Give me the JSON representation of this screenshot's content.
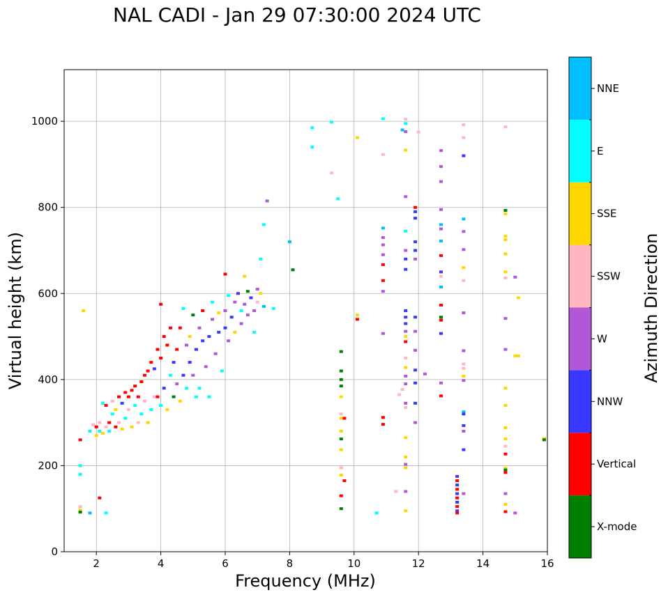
{
  "chart_data": {
    "type": "scatter",
    "title": "NAL CADI - Jan 29 07:30:00 2024 UTC",
    "xlabel": "Frequency (MHz)",
    "ylabel": "Virtual height (km)",
    "xlim": [
      1,
      16
    ],
    "ylim": [
      0,
      1120
    ],
    "xticks": [
      2,
      4,
      6,
      8,
      10,
      12,
      14,
      16
    ],
    "yticks": [
      0,
      200,
      400,
      600,
      800,
      1000
    ],
    "grid": true,
    "colorbar": {
      "label": "Azimuth Direction",
      "categories": [
        {
          "name": "X-mode",
          "color": "#008000"
        },
        {
          "name": "Vertical",
          "color": "#ff0000"
        },
        {
          "name": "NNW",
          "color": "#3838ff"
        },
        {
          "name": "W",
          "color": "#b257d6"
        },
        {
          "name": "SSW",
          "color": "#ffb6c1"
        },
        {
          "name": "SSE",
          "color": "#ffd700"
        },
        {
          "name": "E",
          "color": "#00ffff"
        },
        {
          "name": "NNE",
          "color": "#00bfff"
        }
      ]
    },
    "points": [
      [
        1.5,
        97,
        "SSE"
      ],
      [
        1.5,
        105,
        "SSW"
      ],
      [
        1.5,
        92,
        "X-mode"
      ],
      [
        1.5,
        180,
        "E"
      ],
      [
        1.5,
        200,
        "E"
      ],
      [
        1.5,
        260,
        "Vertical"
      ],
      [
        1.6,
        560,
        "SSE"
      ],
      [
        1.8,
        90,
        "NNE"
      ],
      [
        2.1,
        125,
        "Vertical"
      ],
      [
        2.3,
        90,
        "E"
      ],
      [
        1.8,
        280,
        "E"
      ],
      [
        1.9,
        295,
        "SSW"
      ],
      [
        2.0,
        270,
        "SSE"
      ],
      [
        2.0,
        290,
        "Vertical"
      ],
      [
        2.1,
        280,
        "E"
      ],
      [
        2.1,
        300,
        "SSW"
      ],
      [
        2.2,
        345,
        "E"
      ],
      [
        2.2,
        275,
        "SSE"
      ],
      [
        2.3,
        340,
        "Vertical"
      ],
      [
        2.3,
        290,
        "SSW"
      ],
      [
        2.4,
        300,
        "Vertical"
      ],
      [
        2.4,
        280,
        "E"
      ],
      [
        2.5,
        350,
        "SSW"
      ],
      [
        2.5,
        320,
        "E"
      ],
      [
        2.6,
        290,
        "Vertical"
      ],
      [
        2.6,
        330,
        "SSE"
      ],
      [
        2.7,
        360,
        "Vertical"
      ],
      [
        2.7,
        300,
        "SSW"
      ],
      [
        2.8,
        285,
        "SSE"
      ],
      [
        2.8,
        345,
        "NNW"
      ],
      [
        2.9,
        370,
        "Vertical"
      ],
      [
        2.9,
        310,
        "E"
      ],
      [
        3.0,
        360,
        "Vertical"
      ],
      [
        3.0,
        330,
        "SSW"
      ],
      [
        3.1,
        290,
        "SSE"
      ],
      [
        3.1,
        375,
        "Vertical"
      ],
      [
        3.2,
        340,
        "E"
      ],
      [
        3.2,
        385,
        "Vertical"
      ],
      [
        3.3,
        300,
        "SSW"
      ],
      [
        3.3,
        360,
        "Vertical"
      ],
      [
        3.4,
        395,
        "Vertical"
      ],
      [
        3.4,
        320,
        "E"
      ],
      [
        3.5,
        410,
        "Vertical"
      ],
      [
        3.5,
        350,
        "SSW"
      ],
      [
        3.6,
        300,
        "SSE"
      ],
      [
        3.6,
        420,
        "Vertical"
      ],
      [
        3.7,
        440,
        "Vertical"
      ],
      [
        3.7,
        330,
        "E"
      ],
      [
        3.8,
        360,
        "SSW"
      ],
      [
        3.8,
        425,
        "NNW"
      ],
      [
        3.9,
        470,
        "Vertical"
      ],
      [
        3.9,
        360,
        "Vertical"
      ],
      [
        4.0,
        450,
        "Vertical"
      ],
      [
        4.0,
        340,
        "E"
      ],
      [
        4.0,
        575,
        "Vertical"
      ],
      [
        4.1,
        500,
        "Vertical"
      ],
      [
        4.1,
        380,
        "NNW"
      ],
      [
        4.2,
        480,
        "Vertical"
      ],
      [
        4.2,
        330,
        "SSE"
      ],
      [
        4.3,
        410,
        "E"
      ],
      [
        4.3,
        520,
        "Vertical"
      ],
      [
        4.4,
        360,
        "X-mode"
      ],
      [
        4.4,
        440,
        "NNW"
      ],
      [
        4.5,
        470,
        "Vertical"
      ],
      [
        4.5,
        390,
        "W"
      ],
      [
        4.6,
        520,
        "Vertical"
      ],
      [
        4.6,
        350,
        "SSE"
      ],
      [
        4.7,
        410,
        "NNW"
      ],
      [
        4.7,
        565,
        "E"
      ],
      [
        4.8,
        480,
        "W"
      ],
      [
        4.8,
        380,
        "E"
      ],
      [
        4.9,
        500,
        "SSE"
      ],
      [
        4.9,
        440,
        "NNW"
      ],
      [
        5.0,
        550,
        "X-mode"
      ],
      [
        5.0,
        410,
        "W"
      ],
      [
        5.1,
        360,
        "E"
      ],
      [
        5.1,
        470,
        "NNW"
      ],
      [
        5.2,
        520,
        "W"
      ],
      [
        5.2,
        380,
        "E"
      ],
      [
        5.3,
        490,
        "NNW"
      ],
      [
        5.3,
        560,
        "Vertical"
      ],
      [
        5.4,
        430,
        "W"
      ],
      [
        5.5,
        500,
        "NNW"
      ],
      [
        5.5,
        360,
        "E"
      ],
      [
        5.6,
        540,
        "W"
      ],
      [
        5.6,
        580,
        "E"
      ],
      [
        5.7,
        460,
        "W"
      ],
      [
        5.8,
        510,
        "NNW"
      ],
      [
        5.8,
        555,
        "SSE"
      ],
      [
        5.9,
        420,
        "E"
      ],
      [
        6.0,
        560,
        "W"
      ],
      [
        6.0,
        645,
        "Vertical"
      ],
      [
        6.0,
        520,
        "NNW"
      ],
      [
        6.1,
        490,
        "W"
      ],
      [
        6.1,
        595,
        "E"
      ],
      [
        6.2,
        545,
        "NNW"
      ],
      [
        6.3,
        510,
        "SSE"
      ],
      [
        6.3,
        580,
        "W"
      ],
      [
        6.4,
        600,
        "NNW"
      ],
      [
        6.5,
        530,
        "W"
      ],
      [
        6.5,
        560,
        "E"
      ],
      [
        6.6,
        640,
        "SSE"
      ],
      [
        6.6,
        575,
        "W"
      ],
      [
        6.7,
        605,
        "X-mode"
      ],
      [
        6.7,
        550,
        "W"
      ],
      [
        6.8,
        590,
        "NNW"
      ],
      [
        6.9,
        560,
        "W"
      ],
      [
        6.9,
        510,
        "E"
      ],
      [
        7.0,
        610,
        "W"
      ],
      [
        7.0,
        580,
        "SSW"
      ],
      [
        7.1,
        600,
        "SSE"
      ],
      [
        7.1,
        680,
        "E"
      ],
      [
        7.2,
        570,
        "NNE"
      ],
      [
        7.2,
        760,
        "E"
      ],
      [
        7.3,
        815,
        "W"
      ],
      [
        7.5,
        565,
        "E"
      ],
      [
        8.0,
        720,
        "NNE"
      ],
      [
        8.1,
        655,
        "X-mode"
      ],
      [
        8.7,
        985,
        "E"
      ],
      [
        8.7,
        940,
        "E"
      ],
      [
        9.3,
        998,
        "E"
      ],
      [
        9.3,
        880,
        "SSW"
      ],
      [
        9.5,
        820,
        "E"
      ],
      [
        9.6,
        465,
        "X-mode"
      ],
      [
        9.6,
        420,
        "X-mode"
      ],
      [
        9.6,
        400,
        "X-mode"
      ],
      [
        9.6,
        385,
        "X-mode"
      ],
      [
        9.6,
        360,
        "SSE"
      ],
      [
        9.6,
        320,
        "SSW"
      ],
      [
        9.6,
        310,
        "SSE"
      ],
      [
        9.7,
        310,
        "Vertical"
      ],
      [
        9.6,
        280,
        "SSE"
      ],
      [
        9.6,
        262,
        "X-mode"
      ],
      [
        9.6,
        237,
        "SSE"
      ],
      [
        9.6,
        195,
        "SSW"
      ],
      [
        9.6,
        178,
        "SSE"
      ],
      [
        9.7,
        165,
        "Vertical"
      ],
      [
        9.6,
        130,
        "Vertical"
      ],
      [
        9.6,
        100,
        "X-mode"
      ],
      [
        10.1,
        962,
        "SSE"
      ],
      [
        10.1,
        550,
        "SSE"
      ],
      [
        10.1,
        540,
        "Vertical"
      ],
      [
        10.7,
        90,
        "E"
      ],
      [
        10.9,
        1006,
        "E"
      ],
      [
        10.9,
        923,
        "SSW"
      ],
      [
        10.9,
        752,
        "NNE"
      ],
      [
        10.9,
        730,
        "W"
      ],
      [
        10.9,
        713,
        "W"
      ],
      [
        10.9,
        690,
        "W"
      ],
      [
        10.9,
        667,
        "Vertical"
      ],
      [
        10.9,
        630,
        "Vertical"
      ],
      [
        10.9,
        605,
        "W"
      ],
      [
        10.9,
        507,
        "W"
      ],
      [
        10.9,
        312,
        "Vertical"
      ],
      [
        10.9,
        296,
        "Vertical"
      ],
      [
        11.3,
        140,
        "SSW"
      ],
      [
        11.4,
        365,
        "SSW"
      ],
      [
        11.5,
        377,
        "SSW"
      ],
      [
        11.5,
        980,
        "NNE"
      ],
      [
        11.6,
        1005,
        "SSW"
      ],
      [
        11.6,
        995,
        "E"
      ],
      [
        11.6,
        976,
        "W"
      ],
      [
        11.6,
        933,
        "SSE"
      ],
      [
        11.6,
        825,
        "W"
      ],
      [
        11.6,
        745,
        "E"
      ],
      [
        11.6,
        700,
        "W"
      ],
      [
        11.6,
        680,
        "NNW"
      ],
      [
        11.6,
        656,
        "NNW"
      ],
      [
        11.6,
        560,
        "NNW"
      ],
      [
        11.6,
        545,
        "NNW"
      ],
      [
        11.6,
        530,
        "NNW"
      ],
      [
        11.6,
        512,
        "W"
      ],
      [
        11.6,
        500,
        "SSE"
      ],
      [
        11.6,
        488,
        "Vertical"
      ],
      [
        11.6,
        450,
        "SSW"
      ],
      [
        11.6,
        428,
        "SSE"
      ],
      [
        11.6,
        408,
        "W"
      ],
      [
        11.6,
        390,
        "W"
      ],
      [
        11.6,
        345,
        "W"
      ],
      [
        11.6,
        335,
        "SSW"
      ],
      [
        11.6,
        265,
        "SSE"
      ],
      [
        11.6,
        220,
        "SSE"
      ],
      [
        11.6,
        203,
        "W"
      ],
      [
        11.6,
        195,
        "SSE"
      ],
      [
        11.6,
        140,
        "W"
      ],
      [
        11.6,
        95,
        "SSE"
      ],
      [
        11.9,
        800,
        "Vertical"
      ],
      [
        11.9,
        790,
        "NNW"
      ],
      [
        11.9,
        775,
        "NNW"
      ],
      [
        11.9,
        720,
        "NNW"
      ],
      [
        11.9,
        700,
        "NNW"
      ],
      [
        11.9,
        680,
        "W"
      ],
      [
        11.9,
        545,
        "NNW"
      ],
      [
        11.9,
        512,
        "W"
      ],
      [
        11.9,
        468,
        "W"
      ],
      [
        11.9,
        422,
        "NNW"
      ],
      [
        11.9,
        392,
        "NNW"
      ],
      [
        11.9,
        345,
        "NNW"
      ],
      [
        11.9,
        300,
        "W"
      ],
      [
        12.0,
        975,
        "SSW"
      ],
      [
        12.2,
        413,
        "W"
      ],
      [
        12.7,
        932,
        "W"
      ],
      [
        12.7,
        895,
        "W"
      ],
      [
        12.7,
        860,
        "W"
      ],
      [
        12.7,
        795,
        "W"
      ],
      [
        12.7,
        760,
        "NNE"
      ],
      [
        12.7,
        750,
        "W"
      ],
      [
        12.7,
        722,
        "NNE"
      ],
      [
        12.7,
        688,
        "Vertical"
      ],
      [
        12.7,
        650,
        "NNW"
      ],
      [
        12.7,
        640,
        "SSW"
      ],
      [
        12.7,
        615,
        "NNE"
      ],
      [
        12.7,
        573,
        "Vertical"
      ],
      [
        12.7,
        545,
        "X-mode"
      ],
      [
        12.7,
        538,
        "Vertical"
      ],
      [
        12.7,
        507,
        "NNW"
      ],
      [
        12.7,
        392,
        "W"
      ],
      [
        12.7,
        362,
        "Vertical"
      ],
      [
        13.2,
        175,
        "NNW"
      ],
      [
        13.2,
        165,
        "Vertical"
      ],
      [
        13.2,
        155,
        "NNW"
      ],
      [
        13.2,
        145,
        "Vertical"
      ],
      [
        13.2,
        135,
        "NNW"
      ],
      [
        13.2,
        125,
        "Vertical"
      ],
      [
        13.2,
        115,
        "NNW"
      ],
      [
        13.2,
        105,
        "Vertical"
      ],
      [
        13.2,
        95,
        "NNW"
      ],
      [
        13.2,
        90,
        "Vertical"
      ],
      [
        13.4,
        992,
        "SSW"
      ],
      [
        13.4,
        962,
        "SSW"
      ],
      [
        13.4,
        920,
        "NNW"
      ],
      [
        13.4,
        773,
        "NNE"
      ],
      [
        13.4,
        744,
        "W"
      ],
      [
        13.4,
        702,
        "W"
      ],
      [
        13.4,
        660,
        "SSE"
      ],
      [
        13.4,
        630,
        "SSW"
      ],
      [
        13.4,
        555,
        "W"
      ],
      [
        13.4,
        467,
        "W"
      ],
      [
        13.4,
        436,
        "SSW"
      ],
      [
        13.4,
        426,
        "SSW"
      ],
      [
        13.4,
        408,
        "SSE"
      ],
      [
        13.4,
        398,
        "W"
      ],
      [
        13.4,
        325,
        "NNE"
      ],
      [
        13.4,
        320,
        "NNW"
      ],
      [
        13.4,
        293,
        "NNW"
      ],
      [
        13.4,
        280,
        "W"
      ],
      [
        13.4,
        237,
        "NNW"
      ],
      [
        13.4,
        135,
        "W"
      ],
      [
        14.7,
        987,
        "SSW"
      ],
      [
        14.7,
        793,
        "X-mode"
      ],
      [
        14.7,
        785,
        "SSE"
      ],
      [
        14.7,
        733,
        "SSE"
      ],
      [
        14.7,
        725,
        "SSE"
      ],
      [
        14.7,
        692,
        "SSE"
      ],
      [
        14.7,
        650,
        "SSE"
      ],
      [
        14.7,
        636,
        "SSW"
      ],
      [
        14.7,
        542,
        "W"
      ],
      [
        14.7,
        470,
        "W"
      ],
      [
        14.7,
        380,
        "SSE"
      ],
      [
        14.7,
        340,
        "SSE"
      ],
      [
        14.7,
        288,
        "SSE"
      ],
      [
        14.7,
        262,
        "SSE"
      ],
      [
        14.7,
        245,
        "SSW"
      ],
      [
        14.7,
        227,
        "Vertical"
      ],
      [
        14.7,
        194,
        "SSE"
      ],
      [
        14.7,
        190,
        "X-mode"
      ],
      [
        14.7,
        184,
        "Vertical"
      ],
      [
        14.7,
        135,
        "W"
      ],
      [
        14.7,
        110,
        "SSE"
      ],
      [
        14.7,
        93,
        "Vertical"
      ],
      [
        15.0,
        638,
        "W"
      ],
      [
        15.1,
        590,
        "SSE"
      ],
      [
        15.0,
        455,
        "SSE"
      ],
      [
        15.1,
        455,
        "SSE"
      ],
      [
        15.0,
        90,
        "W"
      ],
      [
        15.9,
        263,
        "SSE"
      ],
      [
        15.9,
        260,
        "X-mode"
      ]
    ]
  }
}
